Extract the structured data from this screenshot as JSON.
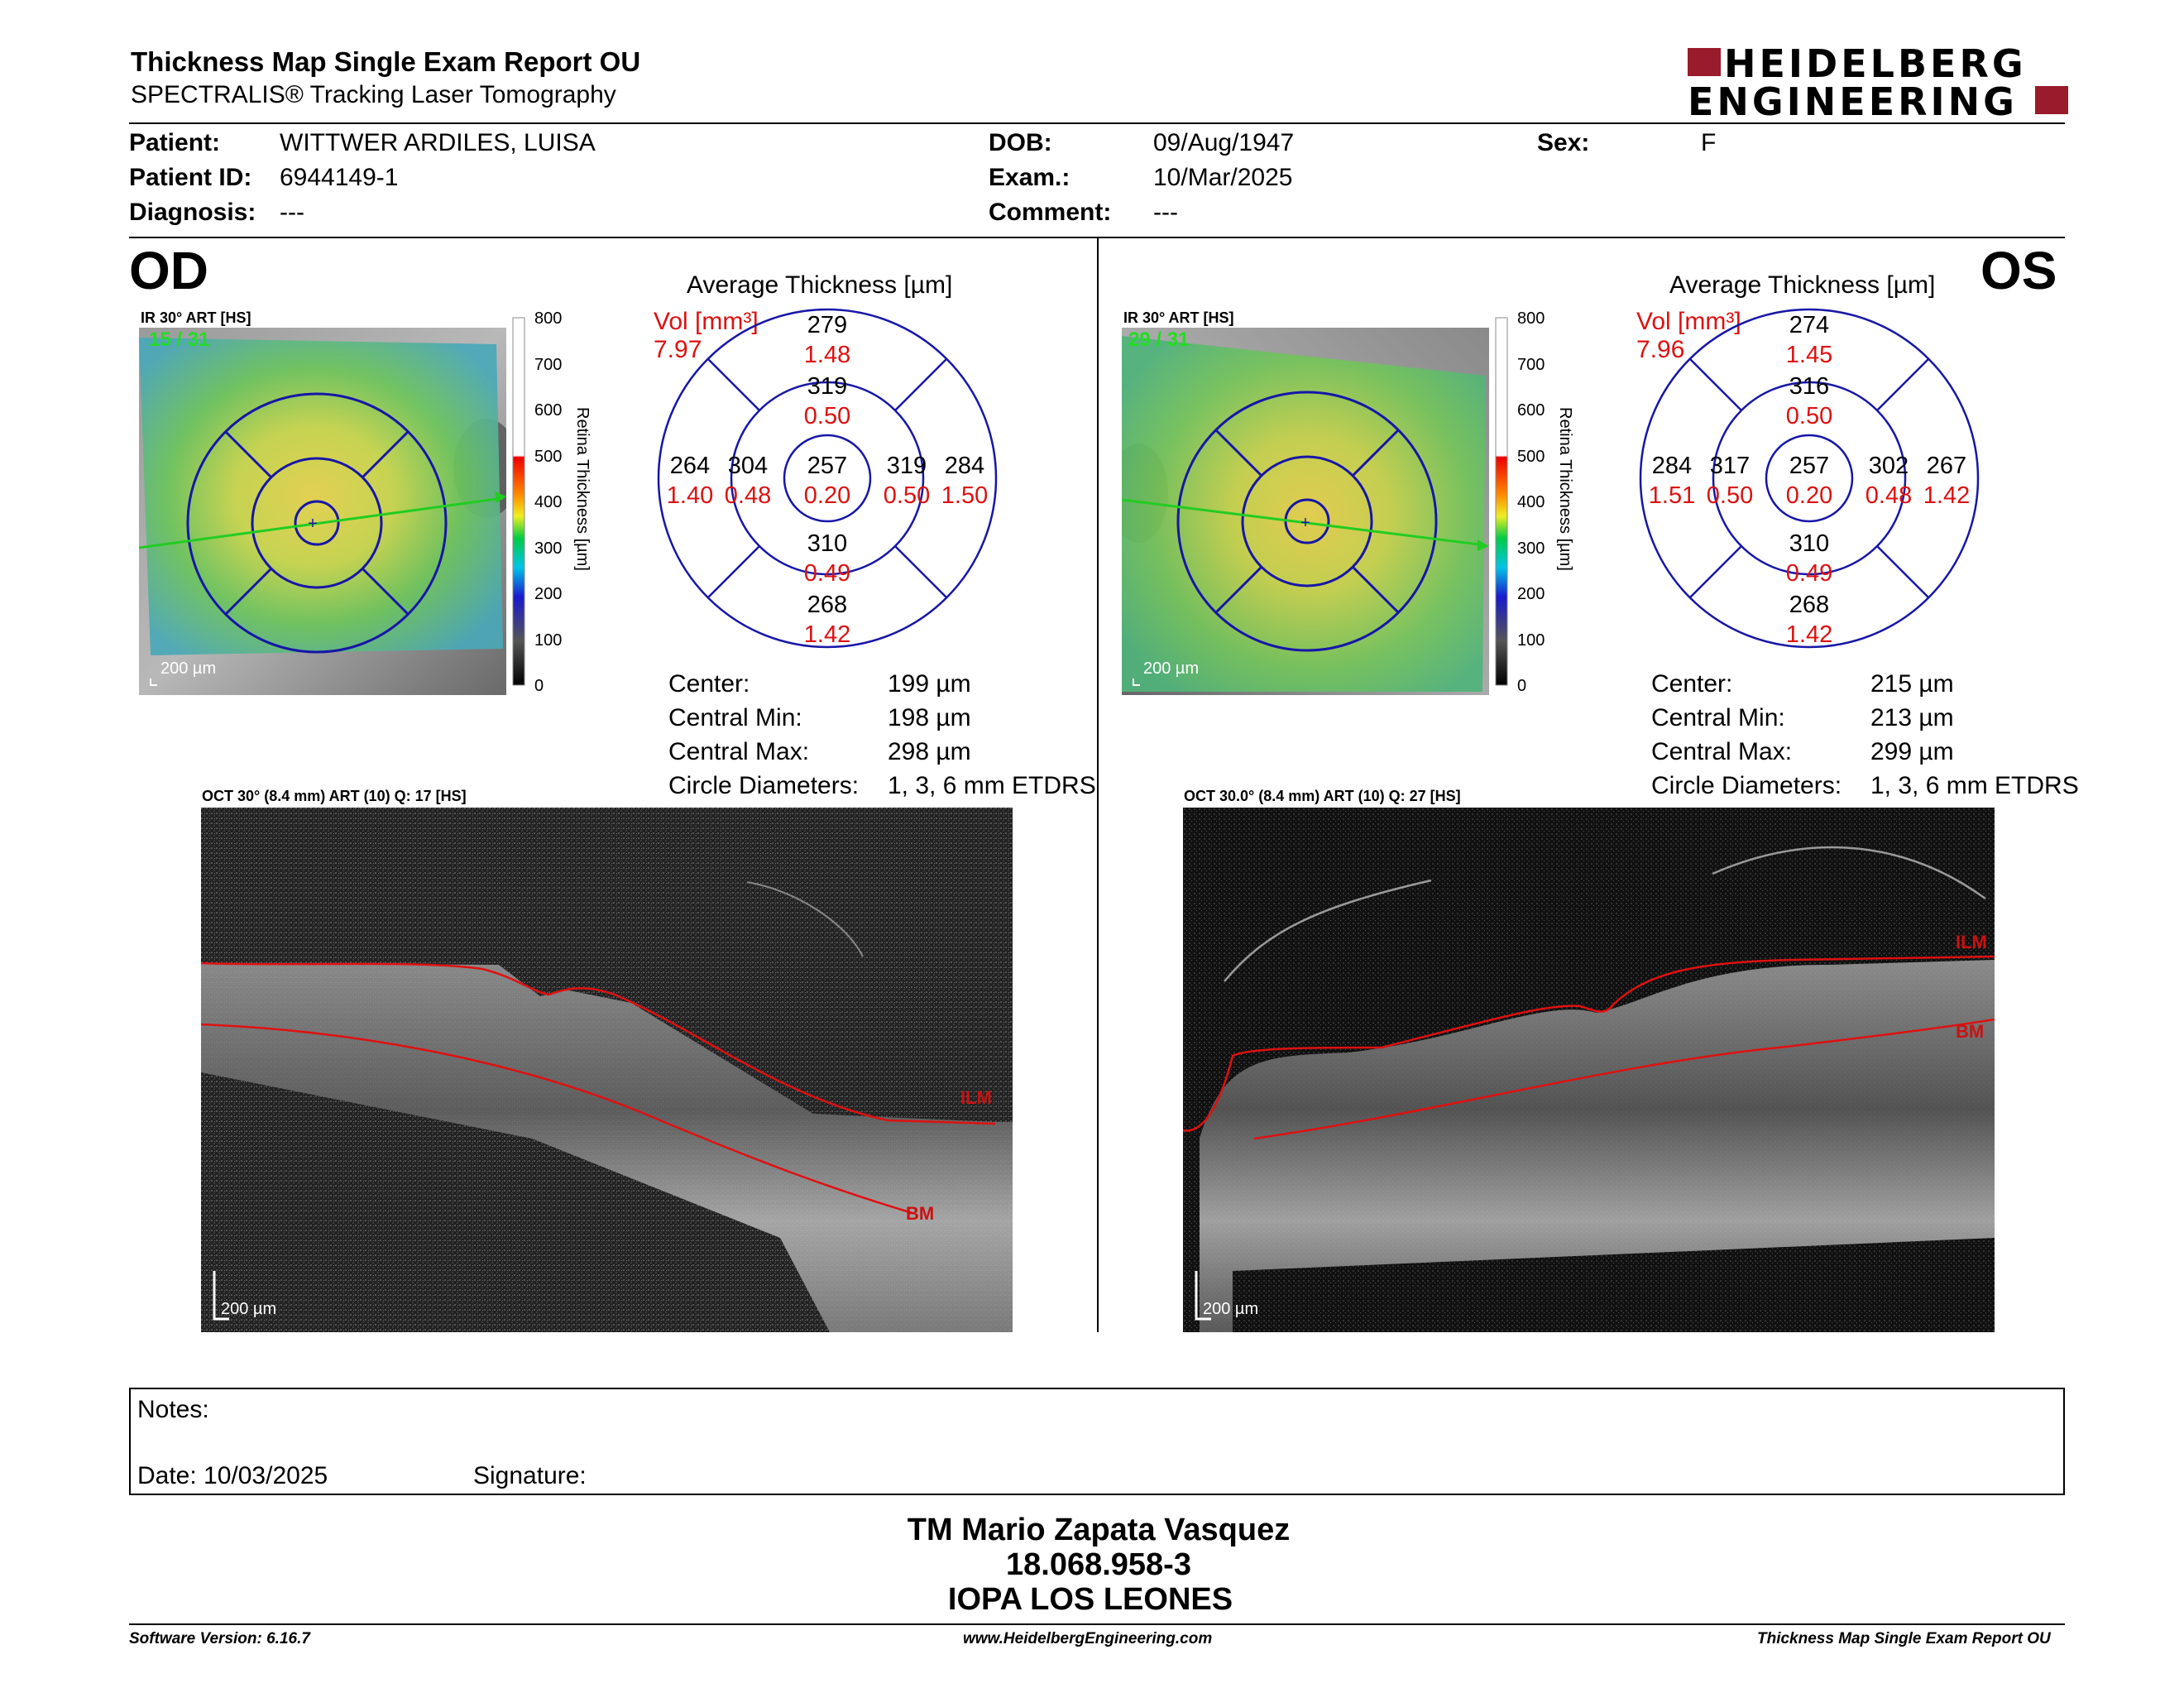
{
  "header": {
    "title": "Thickness Map Single Exam Report OU",
    "subtitle": "SPECTRALIS® Tracking Laser Tomography",
    "logo_line1": "HEIDELBERG",
    "logo_line2": "ENGINEERING",
    "brand_color": "#9a1b2b"
  },
  "patient": {
    "patient_label": "Patient:",
    "patient_value": "WITTWER ARDILES, LUISA",
    "id_label": "Patient ID:",
    "id_value": "6944149-1",
    "diagnosis_label": "Diagnosis:",
    "diagnosis_value": "---",
    "dob_label": "DOB:",
    "dob_value": "09/Aug/1947",
    "exam_label": "Exam.:",
    "exam_value": "10/Mar/2025",
    "comment_label": "Comment:",
    "comment_value": "---",
    "sex_label": "Sex:",
    "sex_value": "F"
  },
  "od": {
    "eye_label": "OD",
    "ir_header": "IR 30° ART [HS]",
    "counter": "15 / 31",
    "scalebar": "200 µm",
    "colorbar_ticks": [
      "800",
      "700",
      "600",
      "500",
      "400",
      "300",
      "200",
      "100",
      "0"
    ],
    "colorbar_label": "Retina Thickness [µm]",
    "chart_title": "Average Thickness [µm]",
    "vol_label": "Vol [mm³]",
    "vol_value": "7.97",
    "grid": {
      "center": {
        "t": "257",
        "v": "0.20"
      },
      "inner_top": {
        "t": "319",
        "v": "0.50"
      },
      "inner_bottom": {
        "t": "310",
        "v": "0.49"
      },
      "inner_left": {
        "t": "304",
        "v": "0.48"
      },
      "inner_right": {
        "t": "319",
        "v": "0.50"
      },
      "outer_top": {
        "t": "279",
        "v": "1.48"
      },
      "outer_bottom": {
        "t": "268",
        "v": "1.42"
      },
      "outer_left": {
        "t": "264",
        "v": "1.40"
      },
      "outer_right": {
        "t": "284",
        "v": "1.50"
      }
    },
    "stats": {
      "center_label": "Center:",
      "center_value": "199 µm",
      "min_label": "Central Min:",
      "min_value": "198 µm",
      "max_label": "Central Max:",
      "max_value": "298 µm",
      "diam_label": "Circle Diameters:",
      "diam_value": "1, 3, 6 mm ETDRS"
    },
    "oct_header": "OCT 30° (8.4 mm) ART (10) Q: 17 [HS]",
    "ilm": "ILM",
    "bm": "BM",
    "oct_scalebar": "200 µm"
  },
  "os": {
    "eye_label": "OS",
    "ir_header": "IR 30° ART [HS]",
    "counter": "29 / 31",
    "scalebar": "200 µm",
    "colorbar_ticks": [
      "800",
      "700",
      "600",
      "500",
      "400",
      "300",
      "200",
      "100",
      "0"
    ],
    "colorbar_label": "Retina Thickness [µm]",
    "chart_title": "Average Thickness [µm]",
    "vol_label": "Vol [mm³]",
    "vol_value": "7.96",
    "grid": {
      "center": {
        "t": "257",
        "v": "0.20"
      },
      "inner_top": {
        "t": "316",
        "v": "0.50"
      },
      "inner_bottom": {
        "t": "310",
        "v": "0.49"
      },
      "inner_left": {
        "t": "317",
        "v": "0.50"
      },
      "inner_right": {
        "t": "302",
        "v": "0.48"
      },
      "outer_top": {
        "t": "274",
        "v": "1.45"
      },
      "outer_bottom": {
        "t": "268",
        "v": "1.42"
      },
      "outer_left": {
        "t": "284",
        "v": "1.51"
      },
      "outer_right": {
        "t": "267",
        "v": "1.42"
      }
    },
    "stats": {
      "center_label": "Center:",
      "center_value": "215 µm",
      "min_label": "Central Min:",
      "min_value": "213 µm",
      "max_label": "Central Max:",
      "max_value": "299 µm",
      "diam_label": "Circle Diameters:",
      "diam_value": "1, 3, 6 mm ETDRS"
    },
    "oct_header": "OCT 30.0° (8.4 mm) ART (10) Q: 27 [HS]",
    "ilm": "ILM",
    "bm": "BM",
    "oct_scalebar": "200 µm"
  },
  "notes": {
    "notes_label": "Notes:",
    "date_label": "Date: 10/03/2025",
    "signature_label": "Signature:"
  },
  "signature": {
    "name": "TM Mario Zapata Vasquez",
    "id": "18.068.958-3",
    "clinic": "IOPA LOS LEONES"
  },
  "footer": {
    "software": "Software Version: 6.16.7",
    "website": "www.HeidelbergEngineering.com",
    "report": "Thickness Map Single Exam Report OU"
  }
}
